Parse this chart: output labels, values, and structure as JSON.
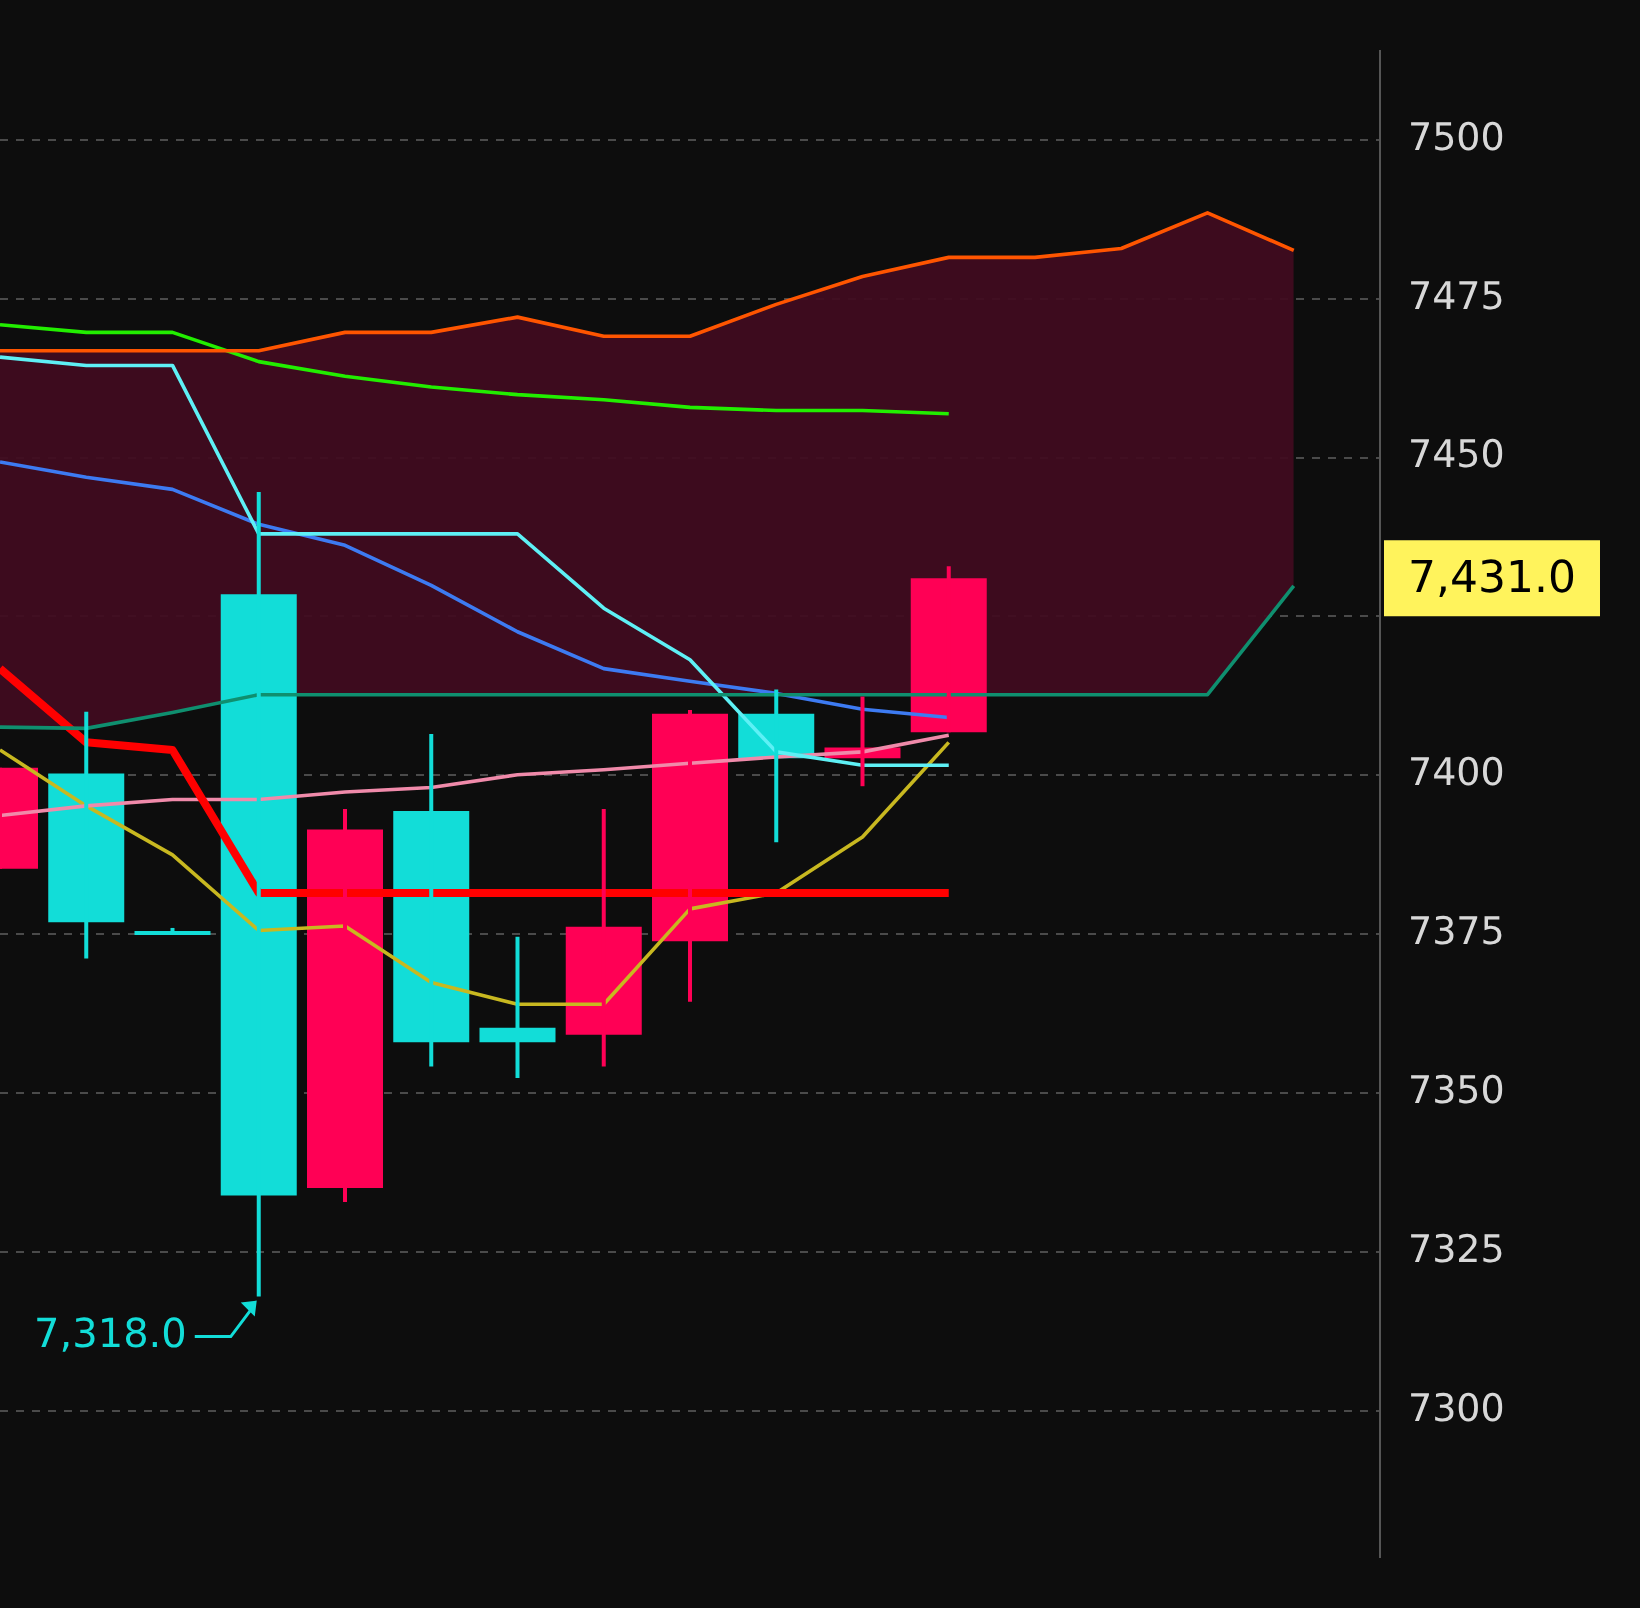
{
  "chart_data": {
    "type": "candlestick",
    "categories": [
      null,
      null,
      null,
      null,
      null,
      null,
      null,
      null,
      null,
      null,
      null,
      null,
      null,
      null,
      null,
      null
    ],
    "ohlc": [
      [
        7385.3,
        7401.2,
        7385.3,
        7401.2
      ],
      [
        7400.3,
        7410,
        7371.2,
        7376.9
      ],
      [
        7375.5,
        7376,
        7375,
        7375.5
      ],
      [
        7428.5,
        7444.6,
        7318,
        7333.9
      ],
      [
        7335.1,
        7394.7,
        7332.9,
        7391.5
      ],
      [
        7394.4,
        7406.5,
        7354.2,
        7358
      ],
      [
        7360.3,
        7374.6,
        7352.4,
        7358
      ],
      [
        7359.2,
        7394.7,
        7354.2,
        7376.2
      ],
      [
        7373.9,
        7410.3,
        7364.4,
        7409.7
      ],
      [
        7409.7,
        7413.5,
        7389.5,
        7402.7
      ],
      [
        7402.7,
        7412.4,
        7398.3,
        7404.4
      ],
      [
        7406.8,
        7432.9,
        7406.8,
        7431
      ],
      null,
      null,
      null,
      null
    ],
    "colors": [
      "#ff0055",
      "#12ddd8",
      "#12ddd8",
      "#12ddd8",
      "#ff0055",
      "#12ddd8",
      "#12ddd8",
      "#ff0055",
      "#ff0055",
      "#12ddd8",
      "#ff0055",
      "#ff0055",
      null,
      null,
      null,
      null
    ],
    "series": [
      {
        "type": "line",
        "color": "#ff5500",
        "values": [
          7466.8,
          7466.8,
          7466.8,
          7466.8,
          7469.7,
          7469.7,
          7472.1,
          7469.1,
          7469.1,
          7474.1,
          7478.5,
          7481.5,
          7481.5,
          7482.9,
          7488.5,
          7482.6
        ],
        "lower": [
          7407.6,
          7407.4,
          7409.9,
          7412.7,
          7412.7,
          7412.7,
          7412.7,
          7412.7,
          7412.7,
          7412.7,
          7412.7,
          7412.7,
          7412.7,
          7412.7,
          7412.7,
          7429.8
        ],
        "upper": [
          7466.8,
          7466.8,
          7466.8,
          7466.8,
          7469.7,
          7469.7,
          7472.1,
          7469.1,
          7469.1,
          7474.1,
          7478.5,
          7481.5,
          7481.5,
          7482.9,
          7488.5,
          7482.6
        ]
      },
      {
        "type": "line",
        "color": "#0f8f6f",
        "values": [
          7407.6,
          7407.4,
          7409.9,
          7412.7,
          7412.7,
          7412.7,
          7412.7,
          7412.7,
          7412.7,
          7412.7,
          7412.7,
          7412.7,
          7412.7,
          7412.7,
          7412.7,
          7429.8
        ]
      },
      {
        "type": "line",
        "color": "#22ee00",
        "values": [
          7470.9,
          7469.7,
          7469.7,
          7465.1,
          7462.8,
          7461.1,
          7459.9,
          7459.1,
          7457.9,
          7457.4,
          7457.4,
          7456.9,
          null,
          null,
          null,
          null
        ]
      },
      {
        "type": "line",
        "color": "#5ef0f5",
        "values": [
          7465.8,
          7464.5,
          7464.5,
          7438,
          7438,
          7438,
          7438,
          7426.3,
          7418.2,
          7403.7,
          7401.6,
          7401.6,
          null,
          null,
          null,
          null
        ]
      },
      {
        "type": "line",
        "color": "#3d7bf2",
        "values": [
          7449.3,
          7446.9,
          7445,
          7439.5,
          7436.2,
          7429.9,
          7422.6,
          7416.8,
          7414.8,
          7412.9,
          7410.4,
          7409.1,
          null,
          null,
          null,
          null
        ]
      },
      {
        "type": "line",
        "color": "#ff0000",
        "values": [
          7416.8,
          7405.2,
          7404,
          7381.5,
          7381.5,
          7381.5,
          7381.5,
          7381.5,
          7381.5,
          7381.5,
          7381.5,
          7381.5,
          null,
          null,
          null,
          null
        ]
      },
      {
        "type": "line",
        "color": "#f08aaa",
        "values": [
          7393.7,
          7395.2,
          7396.2,
          7396.2,
          7397.4,
          7398.1,
          7400.1,
          7400.9,
          7401.9,
          7402.9,
          7403.7,
          7406.3,
          null,
          null,
          null,
          null
        ]
      },
      {
        "type": "line",
        "color": "#c8b820",
        "values": [
          7404,
          7395.2,
          7387.5,
          7375.6,
          7376.3,
          7367.4,
          7364,
          7364,
          7379,
          7381.5,
          7390.3,
          7405.2,
          null,
          null,
          null,
          null
        ]
      }
    ],
    "ylim": [
      7277,
      7514
    ],
    "yticks": [
      7300,
      7325,
      7350,
      7375,
      7400,
      {
        "value": 7425,
        "label": null
      },
      7450,
      7475,
      7500
    ],
    "grid": "y",
    "legend": false,
    "tick_labels": "y",
    "annotations": [
      "7,318.0",
      "7,431.0"
    ]
  }
}
